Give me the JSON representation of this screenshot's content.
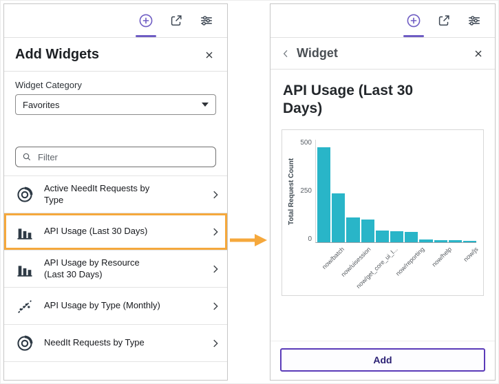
{
  "colors": {
    "accent": "#6e5cc3",
    "highlight": "#f5a83c",
    "bar": "#29b5c8",
    "button_border": "#5a3ab8",
    "button_text": "#2a2073"
  },
  "icons": {
    "toolbar": [
      "circled-plus",
      "share-export",
      "sliders"
    ],
    "close": "x",
    "search": "magnifier",
    "chevron_right": "›",
    "back_chevron": "‹",
    "caret_down": "▾"
  },
  "left_panel": {
    "title": "Add Widgets",
    "category": {
      "label": "Widget Category",
      "value": "Favorites"
    },
    "filter": {
      "placeholder": "Filter"
    },
    "items": [
      {
        "label": "Active NeedIt Requests by Type",
        "icon": "donut-chart-icon",
        "highlighted": false
      },
      {
        "label": "API Usage (Last 30 Days)",
        "icon": "bar-chart-icon",
        "highlighted": true
      },
      {
        "label": "API Usage by Resource (Last 30 Days)",
        "icon": "bar-chart-icon",
        "highlighted": false
      },
      {
        "label": "API Usage by Type (Monthly)",
        "icon": "scatter-chart-icon",
        "highlighted": false
      },
      {
        "label": "NeedIt Requests by Type",
        "icon": "donut-chart-icon",
        "highlighted": false
      }
    ]
  },
  "right_panel": {
    "header": {
      "back": "Widget"
    },
    "title": "API Usage (Last 30 Days)",
    "add_button": "Add"
  },
  "chart_data": {
    "type": "bar",
    "title": "API Usage (Last 30 Days)",
    "xlabel": "",
    "ylabel": "Total Request Count",
    "ylim": [
      0,
      500
    ],
    "yticks": [
      500,
      250,
      0
    ],
    "values": [
      460,
      235,
      118,
      110,
      55,
      52,
      48,
      12,
      9,
      7,
      5
    ],
    "x_labels": [
      "now/batch",
      "now/uisession",
      "now/get_core_ui_l...",
      "now/reporting",
      "now/help",
      "now/js"
    ],
    "bar_color": "#29b5c8",
    "grid": false,
    "legend": false
  }
}
